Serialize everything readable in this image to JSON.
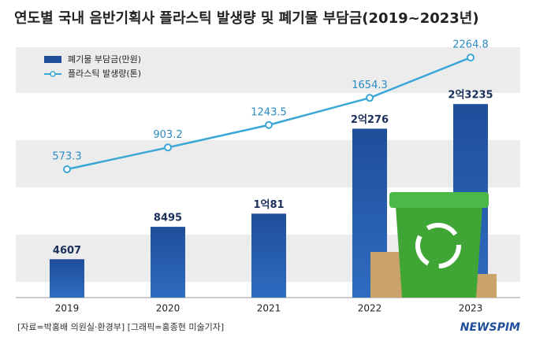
{
  "chart_data": {
    "type": "bar-line",
    "title": "연도별 국내 음반기획사 플라스틱 발생량 및 폐기물 부담금(2019~2023년)",
    "categories": [
      "2019",
      "2020",
      "2021",
      "2022",
      "2023"
    ],
    "series": [
      {
        "name": "폐기물 부담금(만원)",
        "type": "bar",
        "color": "#1f4e9a",
        "values": [
          4607,
          8495,
          10081,
          20276,
          23235
        ],
        "value_labels": [
          "4607",
          "8495",
          "1억81",
          "2억276",
          "2억3235"
        ]
      },
      {
        "name": "플라스틱 발생량(톤)",
        "type": "line",
        "color": "#3aa7d6",
        "axis": "y2",
        "values": [
          573.3,
          903.2,
          1243.5,
          1654.3,
          2264.8
        ]
      }
    ],
    "ylim": [
      0,
      31000
    ],
    "y2lim": [
      -1370,
      2540
    ],
    "legend": "top-left",
    "source": "[자료=박홍배 의원실·환경부] [그래픽=홍종현 미술기자]",
    "logo": "NEWSPIM"
  }
}
